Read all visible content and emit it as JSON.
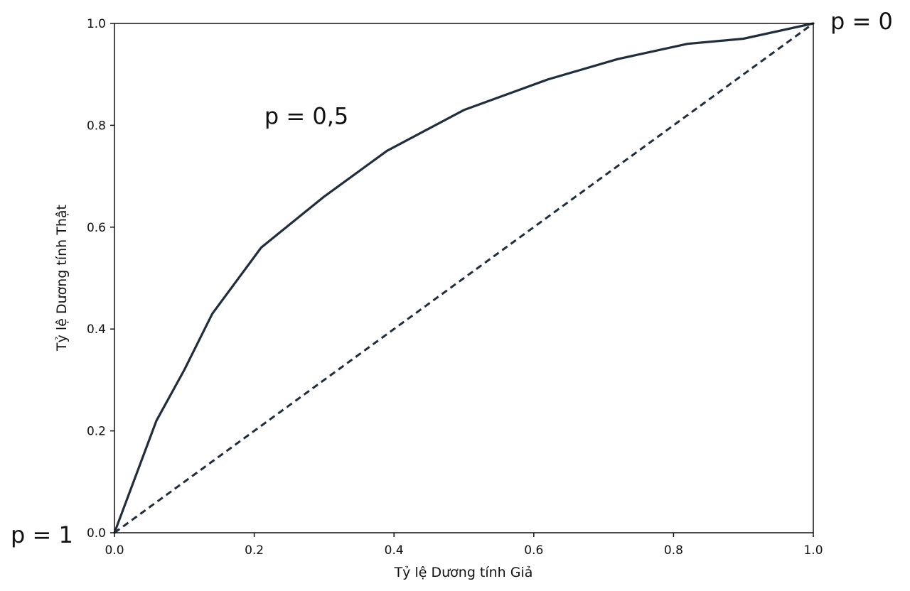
{
  "chart_data": {
    "type": "line",
    "xlabel": "Tỷ lệ Dương tính Giả",
    "ylabel": "Tỷ lệ Dương tính Thật",
    "xlim": [
      0.0,
      1.0
    ],
    "ylim": [
      0.0,
      1.0
    ],
    "grid": false,
    "x_ticks": [
      "0.0",
      "0.2",
      "0.4",
      "0.6",
      "0.8",
      "1.0"
    ],
    "y_ticks": [
      "0.0",
      "0.2",
      "0.4",
      "0.6",
      "0.8",
      "1.0"
    ],
    "series": [
      {
        "style": "solid",
        "color": "#1f2d3d",
        "x": [
          0.0,
          0.06,
          0.1,
          0.14,
          0.21,
          0.3,
          0.39,
          0.5,
          0.62,
          0.72,
          0.82,
          0.9,
          1.0
        ],
        "y": [
          0.0,
          0.22,
          0.32,
          0.43,
          0.56,
          0.66,
          0.75,
          0.83,
          0.89,
          0.93,
          0.96,
          0.97,
          1.0
        ]
      },
      {
        "style": "dashed",
        "color": "#1f2d3d",
        "x": [
          0.0,
          1.0
        ],
        "y": [
          0.0,
          1.0
        ]
      }
    ],
    "annotations": [
      {
        "text": "p = 1",
        "x": 0.0,
        "y": 0.0
      },
      {
        "text": "p = 0,5",
        "x": 0.3,
        "y": 0.75
      },
      {
        "text": "p = 0",
        "x": 1.0,
        "y": 1.0
      }
    ]
  }
}
